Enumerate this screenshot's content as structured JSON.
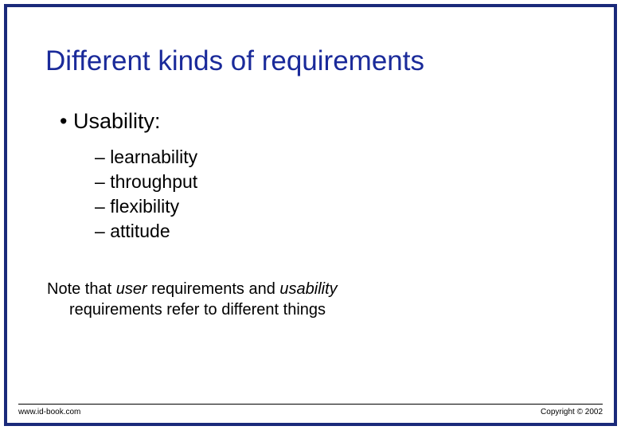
{
  "colors": {
    "frame_border": "#1a2a7a",
    "title_color": "#1a2a9a",
    "body_text": "#000000",
    "background": "#ffffff"
  },
  "typography": {
    "title_fontsize": 35,
    "l1_fontsize": 27,
    "l2_fontsize": 23,
    "note_fontsize": 20,
    "footer_fontsize": 10,
    "font_family": "Verdana"
  },
  "title": "Different kinds of requirements",
  "bullets": {
    "l1": "Usability:",
    "l2": [
      "learnability",
      "throughput",
      "flexibility",
      "attitude"
    ]
  },
  "note": {
    "pre1": "Note that ",
    "italic1": "user",
    "mid1": " requirements and ",
    "italic2": "usability",
    "line2": "requirements refer to different things"
  },
  "footer": {
    "left": "www.id-book.com",
    "right": "Copyright © 2002"
  }
}
